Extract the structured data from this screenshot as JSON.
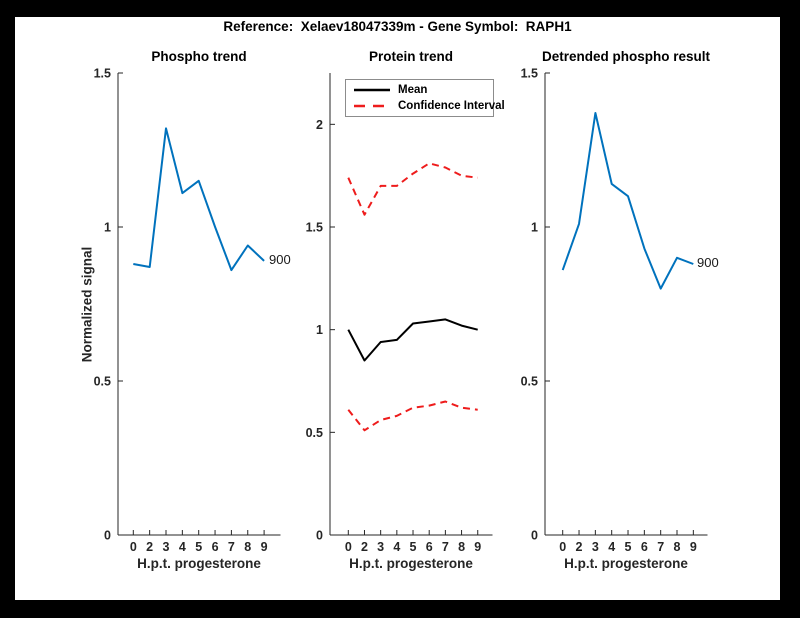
{
  "figure": {
    "title": "Reference:  Xelaev18047339m - Gene Symbol:  RAPH1",
    "background": "#000000",
    "canvas_color": "#ffffff",
    "axis_color": "#262626"
  },
  "chart_data": [
    {
      "id": "phospho-trend",
      "type": "line",
      "title": "Phospho trend",
      "xlabel": "H.p.t. progesterone",
      "ylabel": "Normalized signal",
      "x_tick_labels": [
        "0",
        "2",
        "3",
        "4",
        "5",
        "6",
        "7",
        "8",
        "9"
      ],
      "y_tick_labels": [
        "0",
        "0.5",
        "1",
        "1.5"
      ],
      "ylim": [
        0,
        1.5
      ],
      "grid": false,
      "legend": null,
      "end_label": "900",
      "series": [
        {
          "key": "900",
          "name": "900",
          "color": "#0072bd",
          "dash": null,
          "values": [
            0.88,
            0.87,
            1.32,
            1.11,
            1.15,
            1.0,
            0.86,
            0.94,
            0.89
          ]
        }
      ]
    },
    {
      "id": "protein-trend",
      "type": "line",
      "title": "Protein trend",
      "xlabel": "H.p.t. progesterone",
      "ylabel": "",
      "x_tick_labels": [
        "0",
        "2",
        "3",
        "4",
        "5",
        "6",
        "7",
        "8",
        "9"
      ],
      "y_tick_labels": [
        "0",
        "0.5",
        "1",
        "1.5",
        "2"
      ],
      "ylim": [
        0,
        2.25
      ],
      "grid": false,
      "legend": {
        "position": "northwest",
        "entries": [
          "Mean",
          "Confidence Interval"
        ]
      },
      "end_label": null,
      "series": [
        {
          "key": "mean",
          "name": "Mean",
          "color": "#000000",
          "dash": null,
          "values": [
            1.0,
            0.85,
            0.94,
            0.95,
            1.03,
            1.04,
            1.05,
            1.02,
            1.0
          ]
        },
        {
          "key": "ci-upper",
          "name": "Confidence Interval",
          "color": "#ee1c1c",
          "dash": "7 5",
          "values": [
            1.74,
            1.56,
            1.7,
            1.7,
            1.76,
            1.81,
            1.79,
            1.75,
            1.74
          ]
        },
        {
          "key": "ci-lower",
          "name": "Confidence Interval",
          "color": "#ee1c1c",
          "dash": "7 5",
          "values": [
            0.61,
            0.51,
            0.56,
            0.58,
            0.62,
            0.63,
            0.65,
            0.62,
            0.61
          ]
        }
      ]
    },
    {
      "id": "detrended-phospho",
      "type": "line",
      "title": "Detrended phospho result",
      "xlabel": "H.p.t. progesterone",
      "ylabel": "",
      "x_tick_labels": [
        "0",
        "2",
        "3",
        "4",
        "5",
        "6",
        "7",
        "8",
        "9"
      ],
      "y_tick_labels": [
        "0",
        "0.5",
        "1",
        "1.5"
      ],
      "ylim": [
        0,
        1.5
      ],
      "grid": false,
      "legend": null,
      "end_label": "900",
      "series": [
        {
          "key": "900",
          "name": "900",
          "color": "#0072bd",
          "dash": null,
          "values": [
            0.86,
            1.01,
            1.37,
            1.14,
            1.1,
            0.93,
            0.8,
            0.9,
            0.88
          ]
        }
      ]
    }
  ]
}
